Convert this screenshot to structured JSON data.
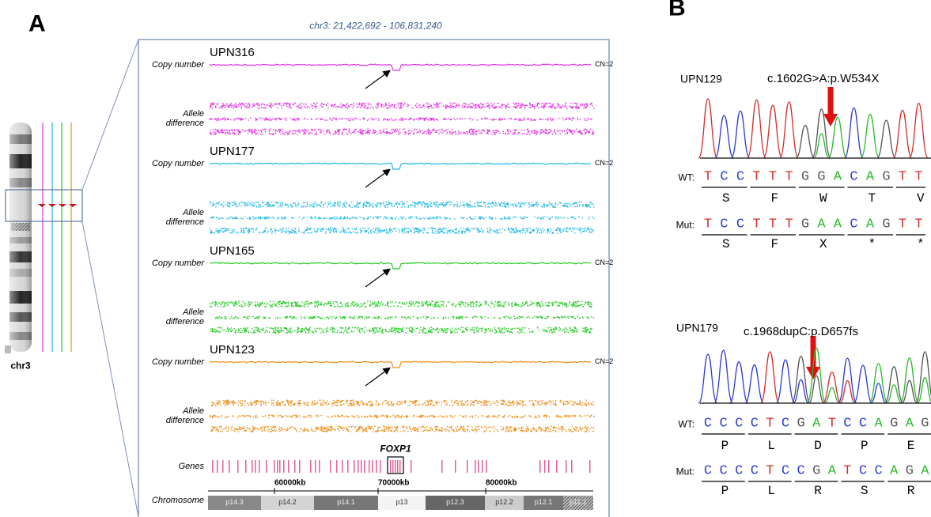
{
  "panel_a": {
    "label": "A",
    "region": "chr3: 21,422,692 - 106,831,240",
    "chromosome_name": "chr3",
    "copy_number_label": "Copy number",
    "allele_label": "Allele difference",
    "cn_label": "CN=2",
    "samples": [
      {
        "name": "UPN316",
        "color": "#e62ee6"
      },
      {
        "name": "UPN177",
        "color": "#1fb8e8"
      },
      {
        "name": "UPN165",
        "color": "#22cc22"
      },
      {
        "name": "UPN123",
        "color": "#f08c14"
      }
    ],
    "genes_label": "Genes",
    "gene_highlight": "FOXP1",
    "chromosome_label": "Chromosome",
    "position_ticks": [
      "60000kb",
      "70000kb",
      "80000kb"
    ],
    "bands": [
      "p14.3",
      "p14.2",
      "p14.1",
      "p13",
      "p12.3",
      "p12.2",
      "p12.1",
      "p11.2"
    ]
  },
  "panel_b": {
    "label": "B",
    "base_colors": {
      "T": "#d42a2a",
      "C": "#2a3ad4",
      "G": "#555555",
      "A": "#2ab82a"
    },
    "entries": [
      {
        "sample": "UPN129",
        "mutation": "c.1602G>A:p.W534X",
        "wt_label": "WT:",
        "wt_seq": [
          "T",
          "C",
          "C",
          "T",
          "T",
          "T",
          "G",
          "G",
          "A",
          "C",
          "A",
          "G",
          "T",
          "T"
        ],
        "wt_aa": [
          "S",
          "F",
          "W",
          "T",
          "V"
        ],
        "mut_label": "Mut:",
        "mut_seq": [
          "T",
          "C",
          "C",
          "T",
          "T",
          "T",
          "G",
          "A",
          "A",
          "C",
          "A",
          "G",
          "T",
          "T"
        ],
        "mut_aa": [
          "S",
          "F",
          "X",
          "*",
          "*"
        ]
      },
      {
        "sample": "UPN179",
        "mutation": "c.1968dupC:p.D657fs",
        "wt_label": "WT:",
        "wt_seq": [
          "C",
          "C",
          "C",
          "C",
          "T",
          "C",
          "G",
          "A",
          "T",
          "C",
          "C",
          "A",
          "G",
          "A",
          "G"
        ],
        "wt_aa": [
          "P",
          "L",
          "D",
          "P",
          "E"
        ],
        "mut_label": "Mut:",
        "mut_seq": [
          "C",
          "C",
          "C",
          "C",
          "T",
          "C",
          "C",
          "G",
          "A",
          "T",
          "C",
          "C",
          "A",
          "G",
          "A"
        ],
        "mut_aa": [
          "P",
          "L",
          "R",
          "S",
          "R"
        ]
      }
    ]
  }
}
